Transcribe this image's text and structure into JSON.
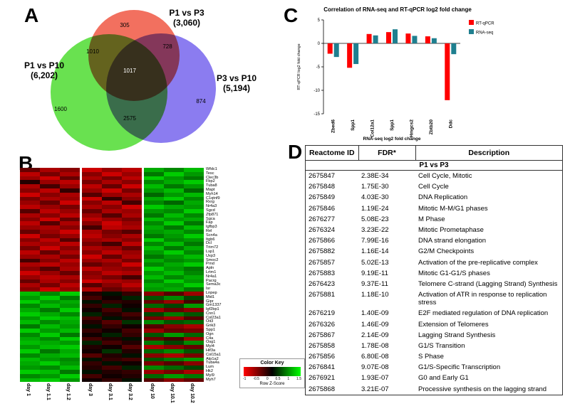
{
  "panel_labels": {
    "a": "A",
    "b": "B",
    "c": "C",
    "d": "D"
  },
  "chart_data": [
    {
      "type": "venn",
      "sets": [
        {
          "label": "P1 vs P3",
          "total": "(3,060)",
          "color": "#f2705f"
        },
        {
          "label": "P1 vs P10",
          "total": "(6,202)",
          "color": "#69e150"
        },
        {
          "label": "P3 vs P10",
          "total": "(5,194)",
          "color": "#8b7cf0"
        }
      ],
      "regions": {
        "p1p3_only": "305",
        "p1p3_and_p1p10": "1010",
        "p1p3_and_p3p10": "728",
        "all_three": "1017",
        "p1p10_only": "1600",
        "p1p10_and_p3p10": "2575",
        "p3p10_only": "874"
      }
    },
    {
      "type": "heatmap",
      "columns": [
        "day 1",
        "day 1.1",
        "day 1.2",
        "day 3",
        "day 3.1",
        "day 3.2",
        "day 10",
        "day 10.1",
        "day 10.2"
      ],
      "genes": [
        "Wfdc1",
        "Tesc",
        "Clec3b",
        "Fbp2",
        "Tuba8",
        "Mapt",
        "Myh14",
        "C1qtnf9",
        "Rxrg",
        "Nr4a3",
        "Sgcd",
        "Zfp871",
        "Sgca",
        "Fap",
        "Igfbp3",
        "Rel",
        "Scn4a",
        "Itgb6",
        "Dcl",
        "Trim72",
        "Lsp1",
        "Uxp3",
        "Smoc2",
        "Prnd",
        "Apln",
        "Lrtm1",
        "Nr4a1",
        "Pacrg",
        "Sema3c",
        "Isr",
        "Lnpep",
        "Mid1",
        "Gipr",
        "Gm1337",
        "Igf2bp1",
        "Cnn1",
        "Col23a1",
        "Oit3",
        "Grik3",
        "Spp1",
        "Ogn",
        "C4a",
        "Osg1",
        "Myl4",
        "Hif3a",
        "Col15a1",
        "Atp1a2",
        "Tuba4a",
        "Lum",
        "Hk2",
        "Myl9",
        "Myh7"
      ],
      "values": [
        [
          -0.6,
          -1.0,
          -0.8,
          -1.2,
          -0.9,
          -1.1,
          1.0,
          0.8,
          1.1
        ],
        [
          -1.1,
          -0.7,
          -1.0,
          -0.8,
          -1.2,
          -0.9,
          0.7,
          1.2,
          0.9
        ],
        [
          -0.9,
          -1.2,
          -0.6,
          -1.0,
          -0.7,
          -1.1,
          1.2,
          0.9,
          0.7
        ],
        [
          -0.2,
          -0.9,
          -1.1,
          -0.7,
          -1.0,
          -0.8,
          0.8,
          1.0,
          1.2
        ],
        [
          -1.0,
          -0.4,
          -0.9,
          -1.1,
          -0.6,
          -1.2,
          1.1,
          0.7,
          0.9
        ],
        [
          -0.8,
          -1.1,
          -0.3,
          -0.9,
          -1.2,
          -0.7,
          0.9,
          1.1,
          0.6
        ],
        [
          -1.2,
          -0.8,
          -1.0,
          -0.5,
          -0.9,
          -1.0,
          0.6,
          0.9,
          1.1
        ],
        [
          -0.7,
          -1.0,
          -0.9,
          -1.2,
          -0.3,
          -0.8,
          1.0,
          1.2,
          0.8
        ],
        [
          -0.9,
          -0.6,
          -1.2,
          -0.8,
          -1.1,
          -0.4,
          0.8,
          0.6,
          1.0
        ],
        [
          -1.1,
          -0.9,
          -0.7,
          -1.0,
          -0.8,
          -1.2,
          1.2,
          1.0,
          0.9
        ],
        [
          -0.5,
          -1.1,
          -0.9,
          -0.6,
          -1.0,
          -0.9,
          0.9,
          0.8,
          1.2
        ],
        [
          -1.0,
          -0.8,
          -1.1,
          -0.9,
          -0.5,
          -1.0,
          0.7,
          1.1,
          0.8
        ],
        [
          -0.8,
          -1.2,
          -0.6,
          -1.1,
          -0.9,
          -0.7,
          1.1,
          0.9,
          1.0
        ],
        [
          -1.1,
          -0.5,
          -1.0,
          -0.8,
          -1.2,
          -0.9,
          0.8,
          1.2,
          0.7
        ],
        [
          -0.9,
          -1.0,
          -0.8,
          -0.4,
          -1.1,
          -1.0,
          1.0,
          0.7,
          1.1
        ],
        [
          -0.6,
          -0.9,
          -1.2,
          -1.0,
          -0.7,
          -0.5,
          0.9,
          1.0,
          0.8
        ],
        [
          -1.2,
          -0.7,
          -0.9,
          -1.1,
          -0.8,
          -1.0,
          0.7,
          0.9,
          1.2
        ],
        [
          -0.8,
          -1.1,
          -0.5,
          -0.9,
          -1.0,
          -0.8,
          1.2,
          0.8,
          0.9
        ],
        [
          -1.0,
          -0.9,
          -1.1,
          -0.7,
          -0.4,
          -1.1,
          0.8,
          1.1,
          0.7
        ],
        [
          -0.7,
          -1.2,
          -0.8,
          -1.0,
          -0.9,
          -0.6,
          1.1,
          0.7,
          1.0
        ],
        [
          -1.1,
          -0.6,
          -1.0,
          -0.8,
          -1.1,
          -0.9,
          0.9,
          1.2,
          0.8
        ],
        [
          -0.9,
          -1.0,
          -0.7,
          -1.2,
          -0.6,
          -1.0,
          0.7,
          0.9,
          1.1
        ],
        [
          -0.4,
          -0.8,
          -1.1,
          -0.9,
          -1.0,
          -0.7,
          1.0,
          0.8,
          0.9
        ],
        [
          -1.0,
          -1.1,
          -0.9,
          -0.6,
          -0.8,
          -1.2,
          0.8,
          1.0,
          1.2
        ],
        [
          -0.8,
          -0.5,
          -1.0,
          -1.1,
          -0.9,
          -0.8,
          1.2,
          0.9,
          0.7
        ],
        [
          -1.2,
          -0.9,
          -0.6,
          -0.8,
          -1.1,
          -1.0,
          0.9,
          1.1,
          0.8
        ],
        [
          -0.9,
          -1.1,
          -1.0,
          -0.9,
          -0.7,
          -0.4,
          1.1,
          0.8,
          1.0
        ],
        [
          -0.6,
          -1.0,
          -0.8,
          -1.2,
          -1.0,
          -0.9,
          0.8,
          1.2,
          0.9
        ],
        [
          -1.0,
          -0.7,
          -1.1,
          -0.5,
          -0.8,
          -1.1,
          1.0,
          0.9,
          1.2
        ],
        [
          -0.8,
          -1.2,
          -0.9,
          -1.0,
          -0.6,
          -0.8,
          0.9,
          1.0,
          0.7
        ],
        [
          1.1,
          0.8,
          1.2,
          -0.2,
          0.1,
          -0.3,
          -0.8,
          -0.5,
          -0.9
        ],
        [
          0.9,
          1.2,
          0.7,
          -0.4,
          -0.1,
          0.2,
          0.5,
          0.8,
          0.4
        ],
        [
          1.2,
          0.9,
          1.0,
          0.1,
          -0.3,
          -0.2,
          -0.6,
          -0.9,
          -0.4
        ],
        [
          0.8,
          1.1,
          0.9,
          -0.3,
          0.2,
          -0.1,
          0.6,
          0.4,
          0.9
        ],
        [
          1.0,
          0.7,
          1.2,
          -0.1,
          -0.4,
          0.1,
          -0.9,
          -0.6,
          -0.8
        ],
        [
          1.2,
          1.0,
          0.8,
          0.2,
          -0.2,
          -0.4,
          0.4,
          0.7,
          0.5
        ],
        [
          0.9,
          1.2,
          1.1,
          -0.4,
          0.1,
          -0.2,
          -0.7,
          -0.9,
          -0.5
        ],
        [
          1.1,
          0.8,
          1.0,
          -0.2,
          -0.5,
          0.3,
          0.8,
          0.5,
          0.6
        ],
        [
          0.7,
          1.1,
          0.9,
          0.1,
          -0.3,
          -0.1,
          -0.5,
          -0.8,
          -1.0
        ],
        [
          1.2,
          0.9,
          1.1,
          -0.3,
          -0.1,
          -0.4,
          -0.9,
          -0.6,
          -0.7
        ],
        [
          0.8,
          1.2,
          0.7,
          -0.1,
          0.2,
          -0.3,
          0.5,
          0.9,
          0.6
        ],
        [
          1.0,
          0.8,
          1.2,
          -0.4,
          -0.2,
          0.1,
          -0.6,
          -0.4,
          -0.9
        ],
        [
          1.1,
          1.0,
          0.9,
          0.2,
          -0.4,
          -0.2,
          0.7,
          0.4,
          0.8
        ],
        [
          0.9,
          1.1,
          1.2,
          -0.2,
          -0.1,
          -0.5,
          -1.0,
          -0.8,
          -0.6
        ],
        [
          1.2,
          0.7,
          1.0,
          -0.1,
          0.3,
          -0.2,
          0.6,
          0.8,
          0.5
        ],
        [
          0.8,
          1.0,
          1.1,
          -0.5,
          -0.2,
          0.1,
          -0.8,
          -1.0,
          -0.7
        ],
        [
          1.1,
          0.9,
          0.8,
          0.1,
          -0.3,
          -0.4,
          0.5,
          0.7,
          0.9
        ],
        [
          1.0,
          1.2,
          0.9,
          -0.3,
          0.1,
          -0.1,
          -0.7,
          -0.5,
          -0.8
        ],
        [
          0.9,
          0.8,
          1.1,
          -0.2,
          -0.4,
          0.2,
          0.8,
          0.6,
          0.4
        ],
        [
          1.2,
          1.1,
          0.7,
          0.1,
          -0.2,
          -0.3,
          -0.9,
          -0.7,
          -1.0
        ],
        [
          0.8,
          0.9,
          1.2,
          -0.4,
          -0.1,
          -0.2,
          0.6,
          0.9,
          0.7
        ],
        [
          1.1,
          1.2,
          0.9,
          -0.1,
          -0.3,
          0.1,
          -0.5,
          -0.8,
          -0.6
        ]
      ],
      "color_key": {
        "title": "Color Key",
        "label": "Row Z-Score",
        "ticks": [
          "-1",
          "-0.5",
          "0",
          "0.5",
          "1",
          "1.5"
        ],
        "colors": {
          "low": "#ff0000",
          "mid": "#000000",
          "high": "#00ff00"
        }
      }
    },
    {
      "type": "bar",
      "title": "Correlation of RNA-seq and RT-qPCR log2 fold change",
      "categories": [
        "Zbed6",
        "Spp1",
        "Col12a1",
        "Spp1",
        "Hmgcs2",
        "Zbtb20",
        "Ddc"
      ],
      "series": [
        {
          "name": "RT-qPCR",
          "color": "#ff0000",
          "values": [
            -2.2,
            -5.2,
            2.0,
            2.4,
            2.1,
            1.5,
            -12.1
          ]
        },
        {
          "name": "RNA-seq",
          "color": "#1f7f8f",
          "values": [
            -2.9,
            -4.4,
            1.7,
            3.0,
            1.6,
            1.1,
            -2.3
          ]
        }
      ],
      "ylabel": "RT-qPCR log2 fold change",
      "xlabel": "RNA-seq log2 fold change",
      "ylim": [
        -15,
        5
      ],
      "yticks": [
        5,
        0,
        -5,
        -10,
        -15
      ],
      "legend_position": "right"
    }
  ],
  "table_d": {
    "headers": [
      "Reactome ID",
      "FDR*",
      "Description"
    ],
    "section": "P1 vs P3",
    "rows": [
      [
        "2675847",
        "2.38E-34",
        "Cell Cycle, Mitotic"
      ],
      [
        "2675848",
        "1.75E-30",
        "Cell Cycle"
      ],
      [
        "2675849",
        "4.03E-30",
        "DNA Replication"
      ],
      [
        "2675846",
        "1.19E-24",
        "Mitotic M-M/G1 phases"
      ],
      [
        "2676277",
        "5.08E-23",
        "M Phase"
      ],
      [
        "2676324",
        "3.23E-22",
        "Mitotic Prometaphase"
      ],
      [
        "2675866",
        "7.99E-16",
        "DNA strand elongation"
      ],
      [
        "2675882",
        "1.16E-14",
        "G2/M Checkpoints"
      ],
      [
        "2675857",
        "5.02E-13",
        "Activation of the pre-replicative complex"
      ],
      [
        "2675883",
        "9.19E-11",
        "Mitotic G1-G1/S phases"
      ],
      [
        "2676423",
        "9.37E-11",
        "Telomere C-strand (Lagging Strand) Synthesis"
      ],
      [
        "2675881",
        "1.18E-10",
        "Activation of ATR in response to replication stress"
      ],
      [
        "2676219",
        "1.40E-09",
        "E2F mediated regulation of DNA replication"
      ],
      [
        "2676326",
        "1.46E-09",
        "Extension of Telomeres"
      ],
      [
        "2675867",
        "2.14E-09",
        "Lagging Strand Synthesis"
      ],
      [
        "2675858",
        "1.78E-08",
        "G1/S Transition"
      ],
      [
        "2675856",
        "6.80E-08",
        "S Phase"
      ],
      [
        "2676841",
        "9.07E-08",
        "G1/S-Specific Transcription"
      ],
      [
        "2676921",
        "1.93E-07",
        "G0 and Early G1"
      ],
      [
        "2675868",
        "3.21E-07",
        "Processive synthesis on the lagging strand"
      ]
    ]
  }
}
